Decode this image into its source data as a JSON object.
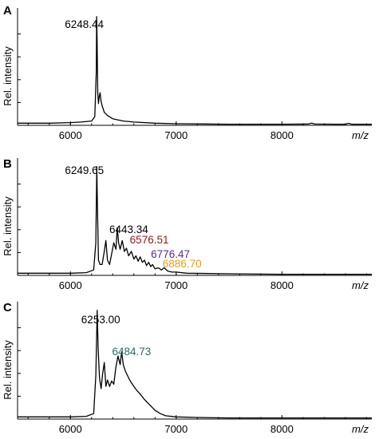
{
  "chart_data": [
    {
      "type": "line",
      "panel": "A",
      "ylabel": "Rel. intensity",
      "xlabel": "m/z",
      "xlim": [
        5500,
        8850
      ],
      "ylim": [
        0,
        1.05
      ],
      "x_ticks": [
        6000,
        7000,
        8000
      ],
      "series": [
        {
          "x": [
            5500,
            5800,
            6000,
            6100,
            6200,
            6230,
            6245,
            6248,
            6252,
            6258,
            6265,
            6272,
            6280,
            6290,
            6300,
            6320,
            6350,
            6400,
            6450,
            6500,
            6600,
            6800,
            7000,
            7500,
            8000,
            8250,
            8280,
            8310,
            8500,
            8600,
            8630,
            8660,
            8850
          ],
          "y": [
            0.02,
            0.02,
            0.025,
            0.03,
            0.04,
            0.08,
            0.5,
            1.0,
            0.78,
            0.3,
            0.2,
            0.26,
            0.3,
            0.22,
            0.18,
            0.12,
            0.09,
            0.06,
            0.05,
            0.04,
            0.03,
            0.02,
            0.015,
            0.01,
            0.01,
            0.012,
            0.02,
            0.012,
            0.01,
            0.01,
            0.018,
            0.01,
            0.01
          ]
        }
      ],
      "annotations": [
        {
          "text": "6248.44",
          "x": 6248.44,
          "color": "#000000"
        }
      ]
    },
    {
      "type": "line",
      "panel": "B",
      "ylabel": "Rel. intensity",
      "xlabel": "m/z",
      "xlim": [
        5500,
        8850
      ],
      "ylim": [
        0,
        1.05
      ],
      "x_ticks": [
        6000,
        7000,
        8000
      ],
      "series": [
        {
          "x": [
            5500,
            5800,
            6000,
            6150,
            6220,
            6240,
            6249,
            6256,
            6265,
            6280,
            6300,
            6320,
            6335,
            6350,
            6370,
            6390,
            6410,
            6430,
            6443,
            6455,
            6470,
            6490,
            6510,
            6530,
            6550,
            6576,
            6600,
            6620,
            6640,
            6660,
            6680,
            6700,
            6720,
            6740,
            6760,
            6776,
            6800,
            6830,
            6860,
            6886,
            6920,
            6960,
            7000,
            7100,
            7500,
            8000,
            8500,
            8850
          ],
          "y": [
            0.02,
            0.02,
            0.02,
            0.025,
            0.05,
            0.3,
            1.0,
            0.6,
            0.14,
            0.1,
            0.1,
            0.22,
            0.32,
            0.14,
            0.1,
            0.2,
            0.3,
            0.24,
            0.44,
            0.3,
            0.24,
            0.32,
            0.22,
            0.25,
            0.18,
            0.22,
            0.15,
            0.18,
            0.13,
            0.17,
            0.12,
            0.14,
            0.09,
            0.12,
            0.08,
            0.1,
            0.06,
            0.07,
            0.05,
            0.07,
            0.04,
            0.03,
            0.03,
            0.02,
            0.015,
            0.01,
            0.01,
            0.01
          ]
        }
      ],
      "annotations": [
        {
          "text": "6249.65",
          "x": 6249.65,
          "color": "#000000"
        },
        {
          "text": "6443.34",
          "x": 6443.34,
          "color": "#000000"
        },
        {
          "text": "6576.51",
          "x": 6576.51,
          "color": "#8b1a1a"
        },
        {
          "text": "6776.47",
          "x": 6776.47,
          "color": "#5b2a86"
        },
        {
          "text": "6886.70",
          "x": 6886.7,
          "color": "#e0a020"
        }
      ]
    },
    {
      "type": "line",
      "panel": "C",
      "ylabel": "Rel. intensity",
      "xlabel": "m/z",
      "xlim": [
        5500,
        8850
      ],
      "ylim": [
        0,
        1.05
      ],
      "x_ticks": [
        6000,
        7000,
        8000
      ],
      "series": [
        {
          "x": [
            5500,
            5800,
            6000,
            6150,
            6220,
            6240,
            6253,
            6262,
            6275,
            6290,
            6305,
            6320,
            6335,
            6350,
            6370,
            6390,
            6410,
            6430,
            6450,
            6470,
            6485,
            6500,
            6520,
            6540,
            6560,
            6580,
            6600,
            6630,
            6660,
            6700,
            6740,
            6800,
            6850,
            6900,
            7000,
            7200,
            7500,
            8000,
            8500,
            8850
          ],
          "y": [
            0.02,
            0.02,
            0.02,
            0.025,
            0.05,
            0.4,
            1.0,
            0.65,
            0.38,
            0.28,
            0.42,
            0.52,
            0.3,
            0.36,
            0.3,
            0.35,
            0.32,
            0.48,
            0.58,
            0.5,
            0.62,
            0.5,
            0.44,
            0.4,
            0.36,
            0.33,
            0.3,
            0.26,
            0.23,
            0.18,
            0.14,
            0.08,
            0.05,
            0.03,
            0.02,
            0.015,
            0.01,
            0.01,
            0.01,
            0.01
          ]
        }
      ],
      "annotations": [
        {
          "text": "6253.00",
          "x": 6253.0,
          "color": "#000000"
        },
        {
          "text": "6484.73",
          "x": 6484.73,
          "color": "#2a6b64"
        }
      ]
    }
  ]
}
